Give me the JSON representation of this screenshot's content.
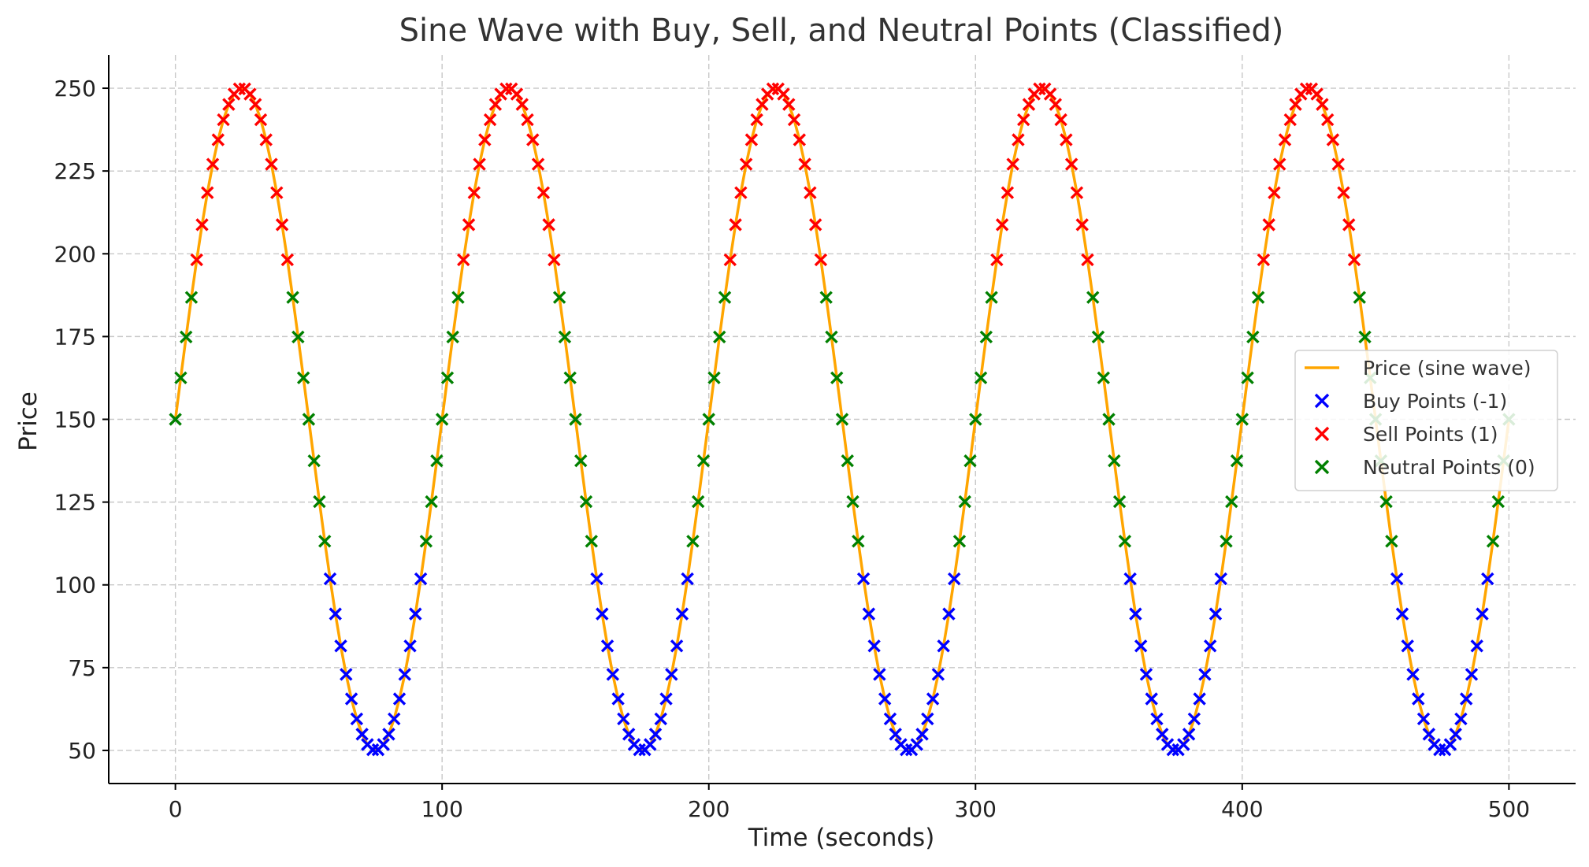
{
  "chart_data": {
    "type": "line",
    "title": "Sine Wave with Buy, Sell, and Neutral Points (Classified)",
    "xlabel": "Time (seconds)",
    "ylabel": "Price",
    "xlim": [
      -25,
      525
    ],
    "ylim": [
      40,
      260
    ],
    "xticks": [
      0,
      100,
      200,
      300,
      400,
      500
    ],
    "yticks": [
      50,
      75,
      100,
      125,
      150,
      175,
      200,
      225,
      250
    ],
    "grid": true,
    "legend_position": "center-right",
    "sine": {
      "offset": 150,
      "amplitude": 100,
      "period": 100,
      "t_start": 0,
      "t_end": 500,
      "sample_step": 2
    },
    "thresholds": {
      "sell_above": 190,
      "buy_below": 110
    },
    "series": [
      {
        "name": "Price (sine wave)",
        "kind": "line",
        "color": "#FFA500"
      },
      {
        "name": "Buy Points (-1)",
        "kind": "marker",
        "marker": "x",
        "color": "#0000FF",
        "class": -1
      },
      {
        "name": "Sell Points (1)",
        "kind": "marker",
        "marker": "x",
        "color": "#FF0000",
        "class": 1
      },
      {
        "name": "Neutral Points (0)",
        "kind": "marker",
        "marker": "x",
        "color": "#008000",
        "class": 0
      }
    ]
  }
}
